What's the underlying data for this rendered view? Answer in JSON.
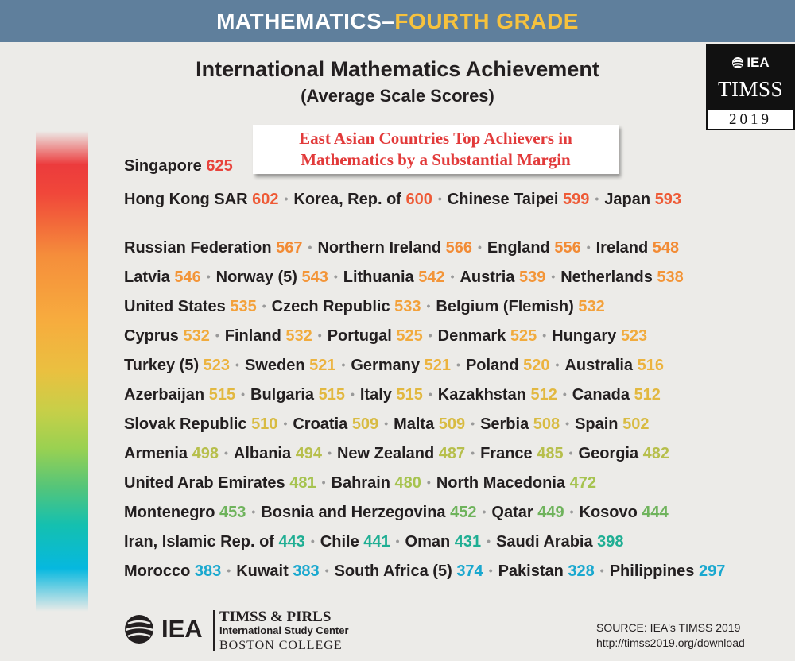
{
  "banner": {
    "part1": "MATHEMATICS–",
    "part2": "FOURTH GRADE"
  },
  "title": "International Mathematics Achievement",
  "subtitle": "(Average Scale Scores)",
  "badge": {
    "org": "IEA",
    "name": "TIMSS",
    "year": "2019"
  },
  "callout": {
    "line1": "East Asian Countries Top Achievers in",
    "line2": "Mathematics by a Substantial Margin"
  },
  "colors": {
    "banner_bg": "#5f7f9c",
    "banner_highlight": "#f7c23d",
    "callout_text": "#e23a3a",
    "background": "#ecebe8"
  },
  "rows": [
    [
      {
        "name": "Singapore",
        "score": "625",
        "color": "#e8423b"
      }
    ],
    [
      {
        "name": "Hong Kong SAR",
        "score": "602",
        "color": "#ee5a36"
      },
      {
        "name": "Korea, Rep. of",
        "score": "600",
        "color": "#ee5a36"
      },
      {
        "name": "Chinese Taipei",
        "score": "599",
        "color": "#ee5a36"
      },
      {
        "name": "Japan",
        "score": "593",
        "color": "#ee5a36"
      }
    ],
    [
      {
        "name": "Russian Federation",
        "score": "567",
        "color": "#f28b35"
      },
      {
        "name": "Northern Ireland",
        "score": "566",
        "color": "#f28b35"
      },
      {
        "name": "England",
        "score": "556",
        "color": "#f28b35"
      },
      {
        "name": "Ireland",
        "score": "548",
        "color": "#f28b35"
      }
    ],
    [
      {
        "name": "Latvia",
        "score": "546",
        "color": "#f39538"
      },
      {
        "name": "Norway (5)",
        "score": "543",
        "color": "#f39538"
      },
      {
        "name": "Lithuania",
        "score": "542",
        "color": "#f39538"
      },
      {
        "name": "Austria",
        "score": "539",
        "color": "#f39538"
      },
      {
        "name": "Netherlands",
        "score": "538",
        "color": "#f39538"
      }
    ],
    [
      {
        "name": "United States",
        "score": "535",
        "color": "#f3a13b"
      },
      {
        "name": "Czech Republic",
        "score": "533",
        "color": "#f3a13b"
      },
      {
        "name": "Belgium (Flemish)",
        "score": "532",
        "color": "#f3a13b"
      }
    ],
    [
      {
        "name": "Cyprus",
        "score": "532",
        "color": "#f1ab3d"
      },
      {
        "name": "Finland",
        "score": "532",
        "color": "#f1ab3d"
      },
      {
        "name": "Portugal",
        "score": "525",
        "color": "#f1ab3d"
      },
      {
        "name": "Denmark",
        "score": "525",
        "color": "#f1ab3d"
      },
      {
        "name": "Hungary",
        "score": "523",
        "color": "#f1ab3d"
      }
    ],
    [
      {
        "name": "Turkey (5)",
        "score": "523",
        "color": "#ecb33f"
      },
      {
        "name": "Sweden",
        "score": "521",
        "color": "#ecb33f"
      },
      {
        "name": "Germany",
        "score": "521",
        "color": "#ecb33f"
      },
      {
        "name": "Poland",
        "score": "520",
        "color": "#ecb33f"
      },
      {
        "name": "Australia",
        "score": "516",
        "color": "#ecb33f"
      }
    ],
    [
      {
        "name": "Azerbaijan",
        "score": "515",
        "color": "#e2b840"
      },
      {
        "name": "Bulgaria",
        "score": "515",
        "color": "#e2b840"
      },
      {
        "name": "Italy",
        "score": "515",
        "color": "#e2b840"
      },
      {
        "name": "Kazakhstan",
        "score": "512",
        "color": "#e2b840"
      },
      {
        "name": "Canada",
        "score": "512",
        "color": "#e2b840"
      }
    ],
    [
      {
        "name": "Slovak Republic",
        "score": "510",
        "color": "#d8bb42"
      },
      {
        "name": "Croatia",
        "score": "509",
        "color": "#d8bb42"
      },
      {
        "name": "Malta",
        "score": "509",
        "color": "#d8bb42"
      },
      {
        "name": "Serbia",
        "score": "508",
        "color": "#d8bb42"
      },
      {
        "name": "Spain",
        "score": "502",
        "color": "#d8bb42"
      }
    ],
    [
      {
        "name": "Armenia",
        "score": "498",
        "color": "#b7bf4c"
      },
      {
        "name": "Albania",
        "score": "494",
        "color": "#b7bf4c"
      },
      {
        "name": "New Zealand",
        "score": "487",
        "color": "#b7bf4c"
      },
      {
        "name": "France",
        "score": "485",
        "color": "#b7bf4c"
      },
      {
        "name": "Georgia",
        "score": "482",
        "color": "#b7bf4c"
      }
    ],
    [
      {
        "name": "United Arab Emirates",
        "score": "481",
        "color": "#a6c34f"
      },
      {
        "name": "Bahrain",
        "score": "480",
        "color": "#a6c34f"
      },
      {
        "name": "North Macedonia",
        "score": "472",
        "color": "#a6c34f"
      }
    ],
    [
      {
        "name": "Montenegro",
        "score": "453",
        "color": "#6fb35c"
      },
      {
        "name": "Bosnia and Herzegovina",
        "score": "452",
        "color": "#6fb35c"
      },
      {
        "name": "Qatar",
        "score": "449",
        "color": "#6fb35c"
      },
      {
        "name": "Kosovo",
        "score": "444",
        "color": "#6fb35c"
      }
    ],
    [
      {
        "name": "Iran, Islamic Rep. of",
        "score": "443",
        "color": "#1fae93"
      },
      {
        "name": "Chile",
        "score": "441",
        "color": "#1fae93"
      },
      {
        "name": "Oman",
        "score": "431",
        "color": "#1fae93"
      },
      {
        "name": "Saudi Arabia",
        "score": "398",
        "color": "#1fae93"
      }
    ],
    [
      {
        "name": "Morocco",
        "score": "383",
        "color": "#1aa8cf"
      },
      {
        "name": "Kuwait",
        "score": "383",
        "color": "#1aa8cf"
      },
      {
        "name": "South Africa (5)",
        "score": "374",
        "color": "#1aa8cf"
      },
      {
        "name": "Pakistan",
        "score": "328",
        "color": "#1aa8cf"
      },
      {
        "name": "Philippines",
        "score": "297",
        "color": "#1aa8cf"
      }
    ]
  ],
  "footer": {
    "iea": "IEA",
    "line1": "TIMSS & PIRLS",
    "line2": "International Study Center",
    "line3": "BOSTON COLLEGE",
    "source_line1": "SOURCE: IEA's TIMSS 2019",
    "source_line2": "http://timss2019.org/download"
  }
}
